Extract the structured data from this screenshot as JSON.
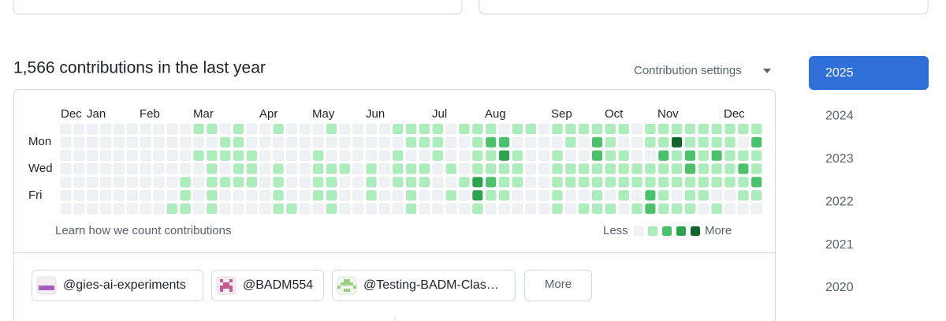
{
  "heading": "1,566 contributions in the last year",
  "settings": "Contribution settings",
  "graph": {
    "months": [
      "Dec",
      "Jan",
      "Feb",
      "Mar",
      "Apr",
      "May",
      "Jun",
      "Jul",
      "Aug",
      "Sep",
      "Oct",
      "Nov",
      "Dec"
    ],
    "days": [
      "Mon",
      "Wed",
      "Fri"
    ],
    "colors": [
      "#eff2f5",
      "#aceebb",
      "#4ac26b",
      "#2da44e",
      "#116329"
    ],
    "levels": [
      [
        0,
        0,
        0,
        0,
        0,
        0,
        0,
        0,
        0,
        0,
        1,
        1,
        0,
        1,
        0,
        0,
        1,
        0,
        0,
        0,
        1,
        0,
        0,
        0,
        0,
        1,
        1,
        1,
        1,
        0,
        1,
        1,
        1,
        0,
        1,
        1,
        0,
        1,
        1,
        1,
        1,
        1,
        1,
        0,
        1,
        1,
        1,
        1,
        1,
        1,
        1,
        1,
        1
      ],
      [
        0,
        0,
        0,
        0,
        0,
        0,
        0,
        0,
        0,
        0,
        0,
        0,
        1,
        1,
        0,
        0,
        0,
        0,
        0,
        0,
        0,
        0,
        0,
        0,
        0,
        0,
        1,
        1,
        1,
        0,
        0,
        1,
        2,
        2,
        0,
        0,
        0,
        0,
        1,
        0,
        2,
        1,
        0,
        0,
        1,
        1,
        4,
        1,
        1,
        1,
        1,
        0,
        2
      ],
      [
        0,
        0,
        0,
        0,
        0,
        0,
        0,
        0,
        0,
        0,
        1,
        1,
        1,
        1,
        1,
        0,
        0,
        0,
        0,
        1,
        0,
        0,
        0,
        0,
        0,
        1,
        0,
        0,
        1,
        0,
        0,
        1,
        1,
        3,
        1,
        0,
        0,
        1,
        0,
        0,
        2,
        1,
        1,
        0,
        0,
        2,
        1,
        2,
        1,
        2,
        1,
        1,
        1
      ],
      [
        0,
        0,
        0,
        0,
        0,
        0,
        0,
        0,
        0,
        0,
        0,
        1,
        0,
        1,
        1,
        0,
        1,
        0,
        0,
        1,
        1,
        1,
        0,
        1,
        0,
        1,
        1,
        1,
        0,
        1,
        0,
        1,
        1,
        1,
        1,
        0,
        0,
        1,
        1,
        1,
        1,
        1,
        1,
        1,
        1,
        1,
        1,
        2,
        1,
        1,
        1,
        2,
        1
      ],
      [
        0,
        0,
        0,
        0,
        0,
        0,
        0,
        0,
        0,
        1,
        0,
        1,
        1,
        1,
        1,
        0,
        1,
        0,
        0,
        1,
        1,
        0,
        0,
        1,
        0,
        1,
        1,
        1,
        0,
        0,
        1,
        3,
        2,
        1,
        1,
        0,
        0,
        1,
        1,
        1,
        1,
        1,
        1,
        1,
        1,
        1,
        1,
        1,
        1,
        1,
        1,
        1,
        2
      ],
      [
        0,
        0,
        0,
        0,
        0,
        0,
        0,
        0,
        0,
        1,
        0,
        1,
        0,
        0,
        0,
        0,
        1,
        0,
        0,
        1,
        1,
        0,
        0,
        1,
        0,
        0,
        1,
        0,
        0,
        1,
        0,
        3,
        1,
        1,
        0,
        0,
        0,
        1,
        0,
        0,
        1,
        0,
        1,
        0,
        2,
        1,
        0,
        1,
        1,
        0,
        0,
        1,
        1
      ],
      [
        0,
        0,
        0,
        0,
        0,
        0,
        0,
        0,
        1,
        1,
        0,
        1,
        0,
        0,
        0,
        0,
        1,
        1,
        0,
        0,
        1,
        0,
        0,
        0,
        0,
        0,
        1,
        0,
        0,
        0,
        0,
        1,
        0,
        0,
        0,
        0,
        0,
        1,
        0,
        1,
        1,
        1,
        0,
        1,
        2,
        1,
        1,
        1,
        0,
        1,
        0,
        0,
        0
      ]
    ],
    "learn": "Learn how we count contributions",
    "less": "Less",
    "more": "More"
  },
  "orgs": [
    "@gies-ai-experiments",
    "@BADM554",
    "@Testing-BADM-Clas…"
  ],
  "more_button": "More",
  "years": [
    "2025",
    "2024",
    "2023",
    "2022",
    "2021",
    "2020"
  ]
}
